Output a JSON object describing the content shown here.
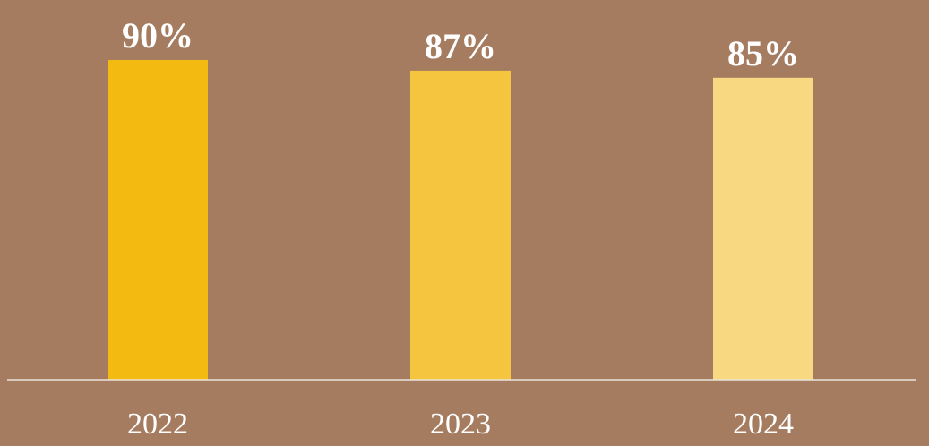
{
  "chart_data": {
    "type": "bar",
    "categories": [
      "2022",
      "2023",
      "2024"
    ],
    "values": [
      90,
      87,
      85
    ],
    "value_labels": [
      "90%",
      "87%",
      "85%"
    ],
    "colors": [
      "#f3bb12",
      "#f5c540",
      "#f8d880"
    ]
  }
}
